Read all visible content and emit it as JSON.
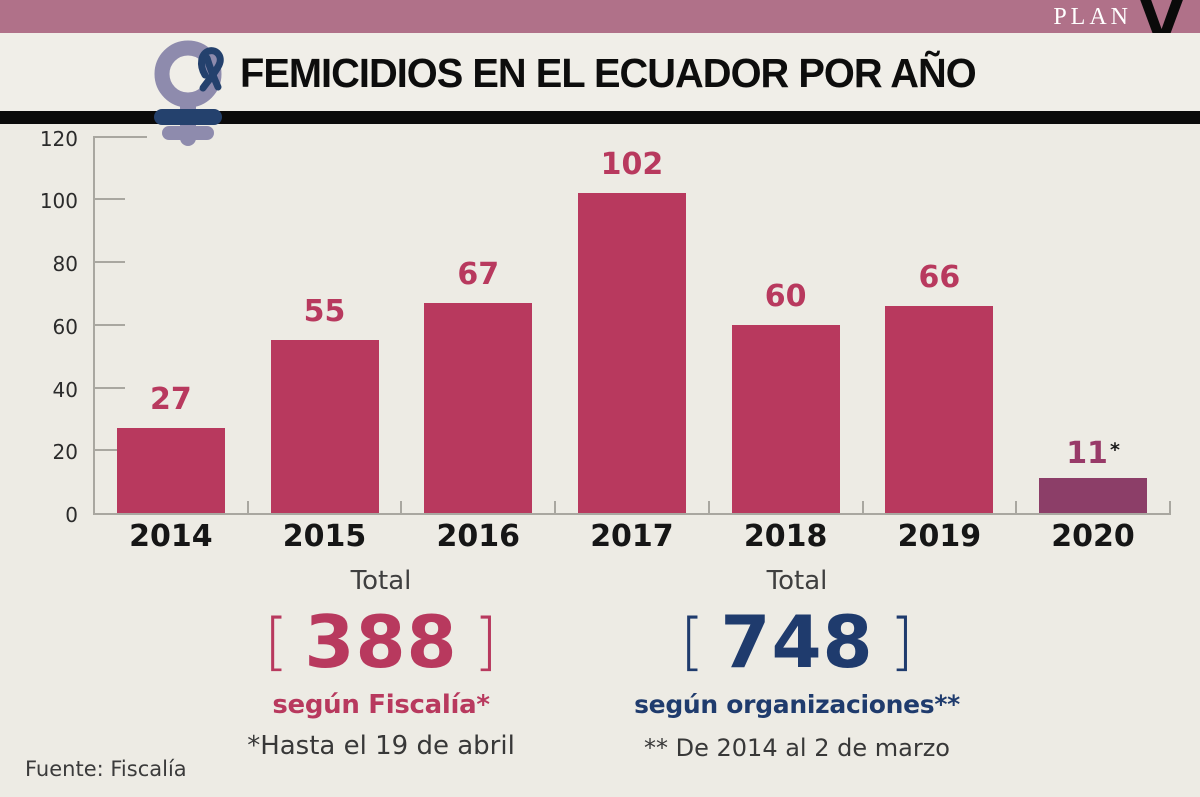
{
  "brand": {
    "plan_text": "PLAN",
    "v_text": "V"
  },
  "header": {
    "title": "FEMICIDIOS EN EL ECUADOR POR AÑO"
  },
  "chart_data": {
    "type": "bar",
    "title": "FEMICIDIOS EN EL ECUADOR POR AÑO",
    "categories": [
      "2014",
      "2015",
      "2016",
      "2017",
      "2018",
      "2019",
      "2020"
    ],
    "values": [
      27,
      55,
      67,
      102,
      60,
      66,
      11
    ],
    "ylim": [
      0,
      120
    ],
    "yticks": [
      0,
      20,
      40,
      60,
      80,
      100,
      120
    ],
    "xlabel": "",
    "ylabel": "",
    "grid": false,
    "legend": "none",
    "bar_colors": [
      "#b8395e",
      "#b8395e",
      "#b8395e",
      "#b8395e",
      "#b8395e",
      "#b8395e",
      "#8c3e68"
    ],
    "value_label_colors": [
      "#b8395e",
      "#b8395e",
      "#b8395e",
      "#b8395e",
      "#b8395e",
      "#b8395e",
      "#983a68"
    ],
    "annotation": {
      "bar_index": 6,
      "mark": "*"
    }
  },
  "totals": {
    "fiscalia": {
      "label": "Total",
      "open_bracket": "[",
      "value": "388",
      "close_bracket": "]",
      "caption": "según Fiscalía*",
      "footnote": "*Hasta el 19 de abril",
      "accent": "#b8395e"
    },
    "organizaciones": {
      "label": "Total",
      "open_bracket": "[",
      "value": "748",
      "close_bracket": "]",
      "caption": "según organizaciones**",
      "footnote": "** De 2014 al 2 de marzo",
      "accent": "#1f3b6d"
    }
  },
  "source": {
    "text": "Fuente: Fiscalía"
  },
  "colors": {
    "topbar": "#b07189",
    "background": "#edebe4",
    "header_band": "#f0eee8",
    "divider": "#0b0b0b",
    "axis": "#a9a7a0",
    "icon_purple": "#8e8bad",
    "icon_navy": "#24416d"
  }
}
